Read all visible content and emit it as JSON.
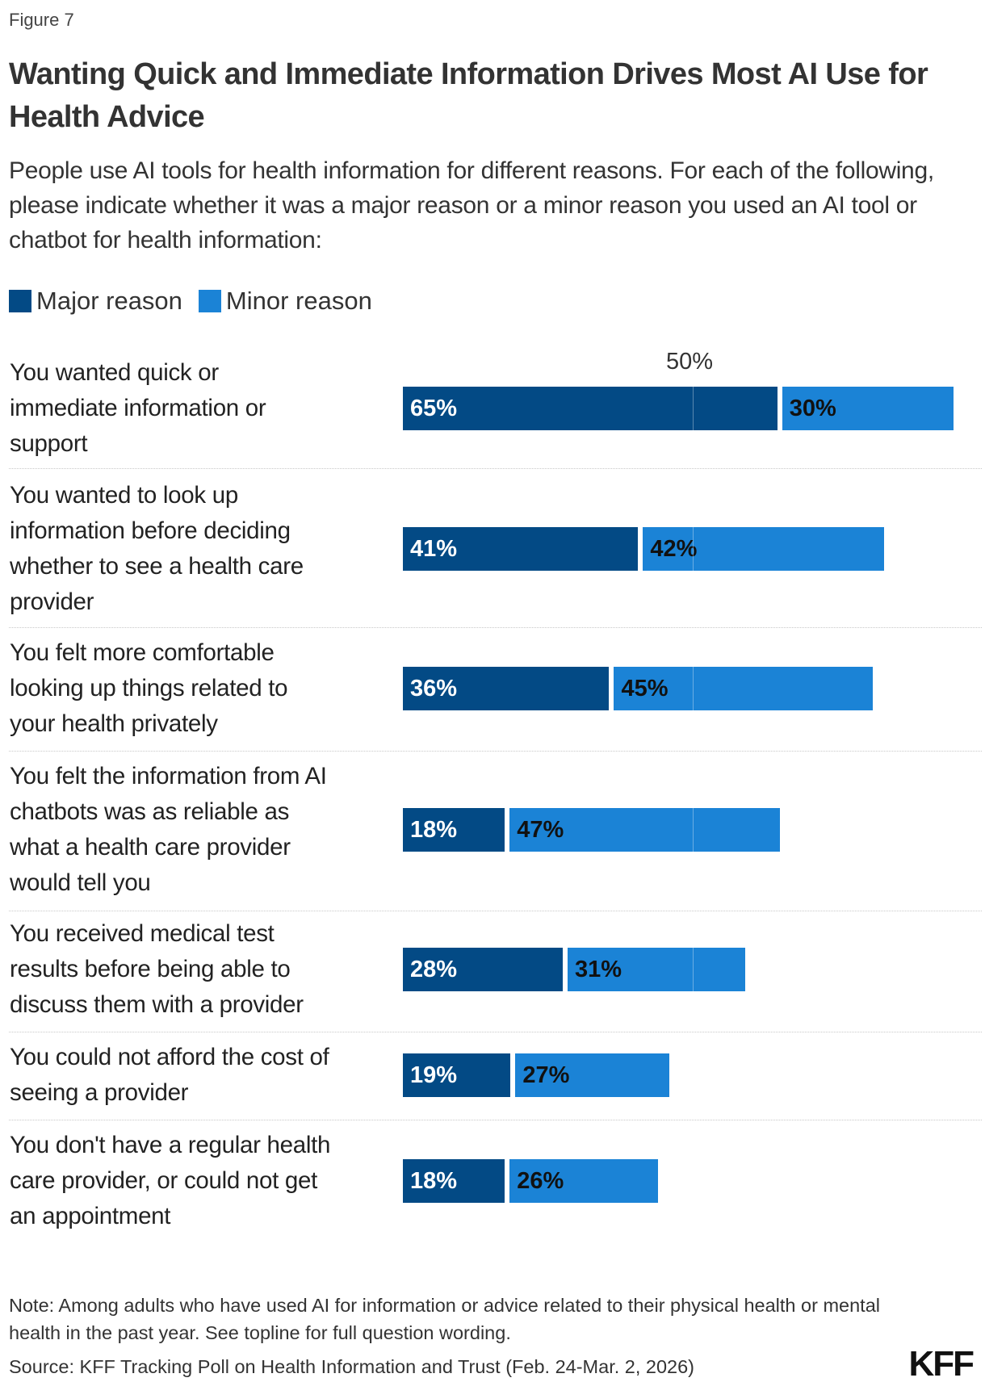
{
  "figure_label": "Figure 7",
  "title": "Wanting Quick and Immediate Information Drives Most AI Use for Health Advice",
  "subtitle": "People use AI tools for health information for different reasons. For each of the following, please indicate whether it was a major reason or a minor reason you used an AI tool or chatbot for health information:",
  "colors": {
    "major": "#034a85",
    "minor": "#1b83d6"
  },
  "chart_data": {
    "type": "bar",
    "orientation": "horizontal",
    "stacked": true,
    "xlim": [
      0,
      100
    ],
    "reference_line": {
      "value": 50,
      "label": "50%"
    },
    "legend_position": "top-left",
    "categories": [
      "You wanted quick or\nimmediate information or\nsupport",
      "You wanted to look up\ninformation before deciding\nwhether to see a health care\nprovider",
      "You felt more comfortable\nlooking up things related to\nyour health privately",
      "You felt the information from AI\nchatbots was as reliable as\nwhat a health care provider\nwould tell you",
      "You received medical test\nresults before being able to\ndiscuss them with a provider",
      "You could not afford the cost of\nseeing a provider",
      "You don't have a regular health\ncare provider, or could not get\nan appointment"
    ],
    "series": [
      {
        "name": "Major reason",
        "values": [
          65,
          41,
          36,
          18,
          28,
          19,
          18
        ],
        "labels": [
          "65%",
          "41%",
          "36%",
          "18%",
          "28%",
          "19%",
          "18%"
        ]
      },
      {
        "name": "Minor reason",
        "values": [
          30,
          42,
          45,
          47,
          31,
          27,
          26
        ],
        "labels": [
          "30%",
          "42%",
          "45%",
          "47%",
          "31%",
          "27%",
          "26%"
        ]
      }
    ]
  },
  "note": "Note: Among adults who have used AI for information or advice related to their physical health or mental health in the past year. See topline for full question wording.",
  "source": "Source: KFF Tracking Poll on Health Information and Trust (Feb. 24-Mar. 2, 2026)",
  "logo": "KFF"
}
